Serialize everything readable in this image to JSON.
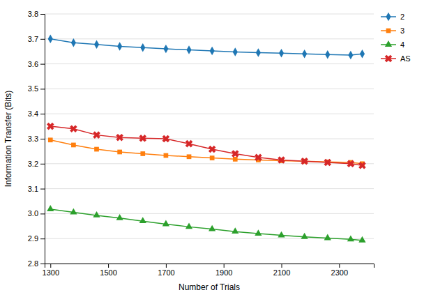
{
  "chart_data": {
    "type": "line",
    "xlabel": "Number of Trials",
    "ylabel": "Information Transfer (Bits)",
    "x": [
      1300,
      1380,
      1460,
      1540,
      1620,
      1700,
      1780,
      1860,
      1940,
      2020,
      2100,
      2180,
      2260,
      2340,
      2380
    ],
    "series": [
      {
        "name": "2",
        "marker": "diamond",
        "values": [
          3.7,
          3.685,
          3.678,
          3.67,
          3.665,
          3.66,
          3.656,
          3.652,
          3.648,
          3.645,
          3.643,
          3.64,
          3.637,
          3.635,
          3.64
        ]
      },
      {
        "name": "3",
        "marker": "square",
        "values": [
          3.295,
          3.275,
          3.258,
          3.247,
          3.24,
          3.233,
          3.228,
          3.223,
          3.218,
          3.215,
          3.212,
          3.21,
          3.207,
          3.205,
          3.2
        ]
      },
      {
        "name": "4",
        "marker": "triangle",
        "values": [
          3.018,
          3.005,
          2.993,
          2.982,
          2.97,
          2.958,
          2.947,
          2.938,
          2.928,
          2.92,
          2.913,
          2.907,
          2.902,
          2.897,
          2.893
        ]
      },
      {
        "name": "AS",
        "marker": "x",
        "values": [
          3.35,
          3.34,
          3.315,
          3.305,
          3.302,
          3.3,
          3.28,
          3.258,
          3.24,
          3.225,
          3.215,
          3.21,
          3.205,
          3.2,
          3.193
        ]
      }
    ],
    "xlim": [
      1280,
      2420
    ],
    "ylim": [
      2.8,
      3.8
    ],
    "xticks": [
      1300,
      1500,
      1700,
      1900,
      2100,
      2300
    ],
    "yticks": [
      2.8,
      2.9,
      {
        "value": 3.0,
        "label": "3.0"
      },
      3.1,
      3.2,
      3.3,
      3.4,
      3.5,
      3.6,
      3.7,
      3.8
    ],
    "grid": true,
    "legend": "right"
  }
}
